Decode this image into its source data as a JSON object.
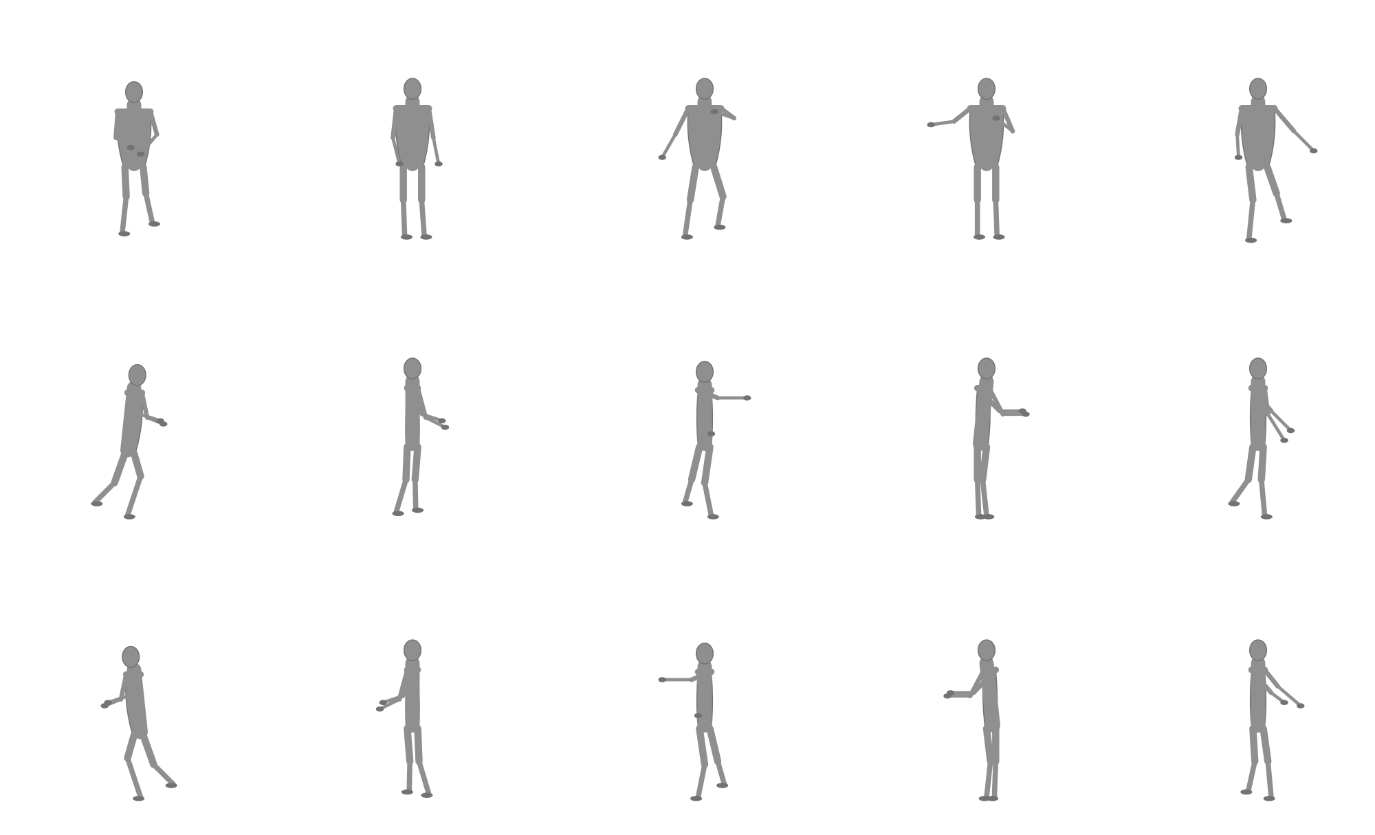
{
  "canvas": {
    "background": "#ffffff",
    "mesh_color": "#8f8f8f",
    "mesh_shadow": "#727272"
  },
  "grid": {
    "rows": 3,
    "columns": 5,
    "subject": "grey-human-body-mesh-poses"
  },
  "figures": [
    {
      "row": 1,
      "col": 1,
      "view": "front",
      "pose": "hands-on-stomach"
    },
    {
      "row": 1,
      "col": 2,
      "view": "front",
      "pose": "standing-relaxed"
    },
    {
      "row": 1,
      "col": 3,
      "view": "front",
      "pose": "arm-raised-dance"
    },
    {
      "row": 1,
      "col": 4,
      "view": "front",
      "pose": "arm-extended-side"
    },
    {
      "row": 1,
      "col": 5,
      "view": "front",
      "pose": "lunge-arm-out"
    },
    {
      "row": 2,
      "col": 1,
      "view": "side",
      "pose": "crouch-reach"
    },
    {
      "row": 2,
      "col": 2,
      "view": "side",
      "pose": "standing-hands-forward"
    },
    {
      "row": 2,
      "col": 3,
      "view": "side",
      "pose": "arm-extended-lean"
    },
    {
      "row": 2,
      "col": 4,
      "view": "side",
      "pose": "standing-reach"
    },
    {
      "row": 2,
      "col": 5,
      "view": "side",
      "pose": "walking-arms-forward"
    },
    {
      "row": 3,
      "col": 1,
      "view": "back",
      "pose": "crouch-reach"
    },
    {
      "row": 3,
      "col": 2,
      "view": "back",
      "pose": "standing-hands-forward"
    },
    {
      "row": 3,
      "col": 3,
      "view": "back",
      "pose": "arm-extended-lean"
    },
    {
      "row": 3,
      "col": 4,
      "view": "back",
      "pose": "standing-reach"
    },
    {
      "row": 3,
      "col": 5,
      "view": "back",
      "pose": "walking-arm-out"
    }
  ]
}
